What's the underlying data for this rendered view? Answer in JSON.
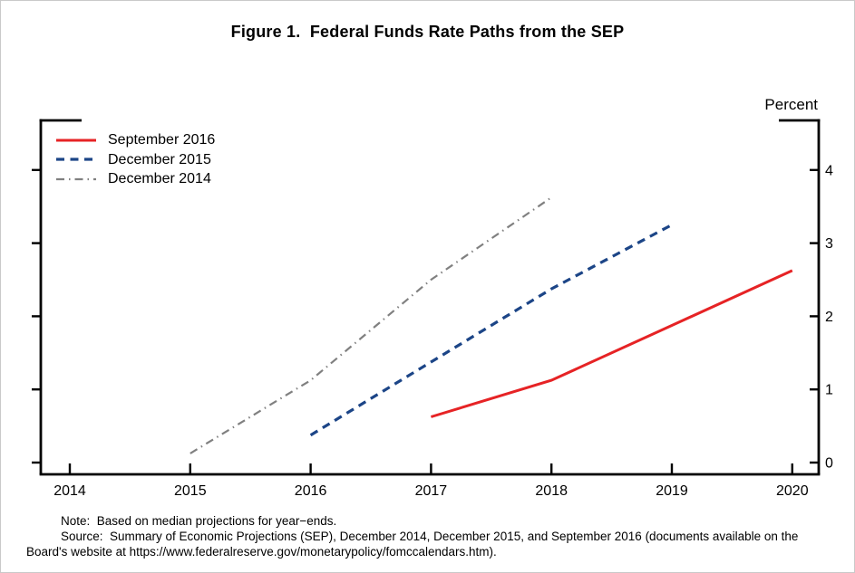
{
  "figure": {
    "title": "Figure 1.  Federal Funds Rate Paths from the SEP",
    "y_axis_unit_label": "Percent",
    "notes": [
      "Note:  Based on median projections for year−ends.",
      "Source:  Summary of Economic Projections (SEP), December 2014, December 2015, and September 2016 (documents available on the Board's website at https://www.federalreserve.gov/monetarypolicy/fomccalendars.htm)."
    ]
  },
  "chart_data": {
    "type": "line",
    "title": "Figure 1.  Federal Funds Rate Paths from the SEP",
    "xlabel": "",
    "ylabel": "Percent",
    "x_ticks": [
      2014,
      2015,
      2016,
      2017,
      2018,
      2019,
      2020
    ],
    "y_ticks": [
      0,
      1,
      2,
      3,
      4
    ],
    "xlim": [
      2013.76,
      2020.23
    ],
    "ylim": [
      -0.16,
      4.67
    ],
    "grid": false,
    "legend_position": "top-left",
    "axis_color": "#000000",
    "series": [
      {
        "name": "September 2016",
        "color": "#e62325",
        "style": "solid",
        "x": [
          2017,
          2018,
          2019,
          2020
        ],
        "values": [
          0.625,
          1.125,
          1.875,
          2.625
        ]
      },
      {
        "name": "December 2015",
        "color": "#1c4587",
        "style": "dashed",
        "x": [
          2016,
          2017,
          2018,
          2019
        ],
        "values": [
          0.375,
          1.375,
          2.375,
          3.25
        ]
      },
      {
        "name": "December 2014",
        "color": "#808080",
        "style": "dashdot",
        "x": [
          2015,
          2016,
          2017,
          2018
        ],
        "values": [
          0.125,
          1.125,
          2.5,
          3.625
        ]
      }
    ],
    "note": "Based on median projections for year-ends. Source: Summary of Economic Projections (SEP), December 2014, December 2015, and September 2016."
  }
}
